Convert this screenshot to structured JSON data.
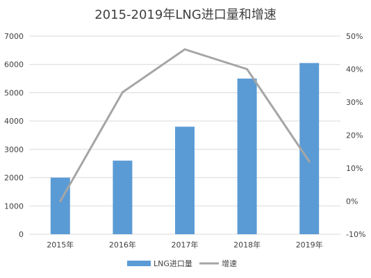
{
  "chart_data": {
    "type": "bar",
    "title": "2015-2019年LNG进口量和增速",
    "categories": [
      "2015年",
      "2016年",
      "2017年",
      "2018年",
      "2019年"
    ],
    "series": [
      {
        "name": "LNG进口量",
        "type": "bar",
        "axis": "left",
        "values": [
          2000,
          2600,
          3800,
          5500,
          6050
        ]
      },
      {
        "name": "增速",
        "type": "line",
        "axis": "right",
        "values": [
          0.0,
          0.33,
          0.46,
          0.4,
          0.12
        ]
      }
    ],
    "left_axis": {
      "ylim": [
        0,
        7000
      ],
      "ticks": [
        0,
        1000,
        2000,
        3000,
        4000,
        5000,
        6000,
        7000
      ],
      "tick_labels": [
        "0",
        "1000",
        "2000",
        "3000",
        "4000",
        "5000",
        "6000",
        "7000"
      ]
    },
    "right_axis": {
      "ylim": [
        -0.1,
        0.5
      ],
      "ticks": [
        -0.1,
        0.0,
        0.1,
        0.2,
        0.3,
        0.4,
        0.5
      ],
      "tick_labels": [
        "-10%",
        "0%",
        "10%",
        "20%",
        "30%",
        "40%",
        "50%"
      ]
    },
    "grid": true,
    "legend": "bottom",
    "colors": {
      "bar": "#5B9BD5",
      "line": "#A5A5A5",
      "grid": "#D9D9D9",
      "text": "#404040"
    }
  }
}
